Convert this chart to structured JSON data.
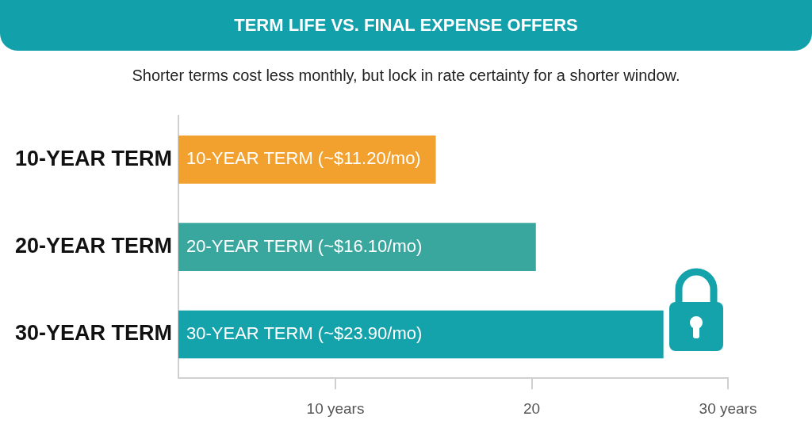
{
  "chart_data": {
    "type": "bar",
    "orientation": "horizontal",
    "title": "TERM LIFE VS. FINAL EXPENSE OFFERS",
    "subtitle": "Shorter terms cost less monthly, but lock in rate certainty for a shorter window.",
    "categories": [
      "10-YEAR TERM",
      "20-YEAR TERM",
      "30-YEAR TERM"
    ],
    "values": [
      15.1,
      20.2,
      26.7
    ],
    "colors": [
      "#f2a12e",
      "#3aa79f",
      "#14a2ab"
    ],
    "value_labels": [
      "10-YEAR TERM (~$11.20/mo)",
      "20-YEAR TERM (~$16.10/mo)",
      "30-YEAR TERM (~$23.90/mo)"
    ],
    "xlim": [
      2,
      30
    ],
    "xticks": [
      {
        "value": 10,
        "label": "10 years"
      },
      20,
      {
        "value": 30,
        "label": "30 years"
      }
    ],
    "grid": false,
    "legend": false
  }
}
